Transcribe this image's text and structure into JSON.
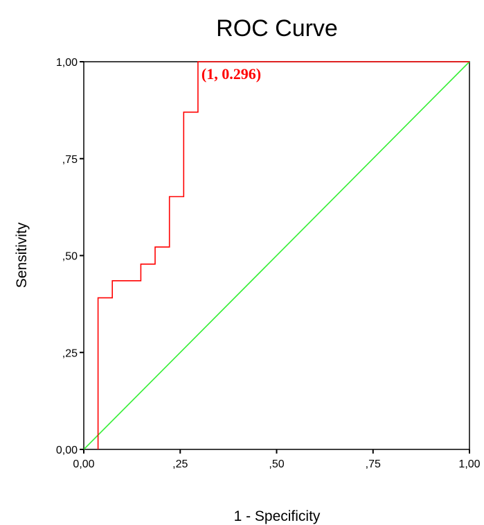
{
  "chart_data": {
    "type": "line",
    "title": "ROC Curve",
    "xlabel": "1 - Specificity",
    "ylabel": "Sensitivity",
    "xlim": [
      0,
      1
    ],
    "ylim": [
      0,
      1
    ],
    "x_ticks": [
      0,
      0.25,
      0.5,
      0.75,
      1
    ],
    "x_tick_labels": [
      "0,00",
      ",25",
      ",50",
      ",75",
      "1,00"
    ],
    "y_ticks": [
      0,
      0.25,
      0.5,
      0.75,
      1
    ],
    "y_tick_labels": [
      "0,00",
      ",25",
      ",50",
      ",75",
      "1,00"
    ],
    "grid": false,
    "series": [
      {
        "color": "#ff0000",
        "x": [
          0.037,
          0.037,
          0.074,
          0.074,
          0.148,
          0.148,
          0.185,
          0.185,
          0.222,
          0.222,
          0.259,
          0.259,
          0.296,
          0.296,
          1.0
        ],
        "y": [
          0.0,
          0.391,
          0.391,
          0.435,
          0.435,
          0.478,
          0.478,
          0.522,
          0.522,
          0.652,
          0.652,
          0.87,
          0.87,
          1.0,
          1.0
        ]
      },
      {
        "color": "#33ee33",
        "x": [
          0,
          1
        ],
        "y": [
          0,
          1
        ]
      }
    ],
    "annotations": [
      {
        "text": "(1, 0.296)",
        "x": 0.305,
        "y": 0.955,
        "color": "#ff0000"
      }
    ]
  }
}
